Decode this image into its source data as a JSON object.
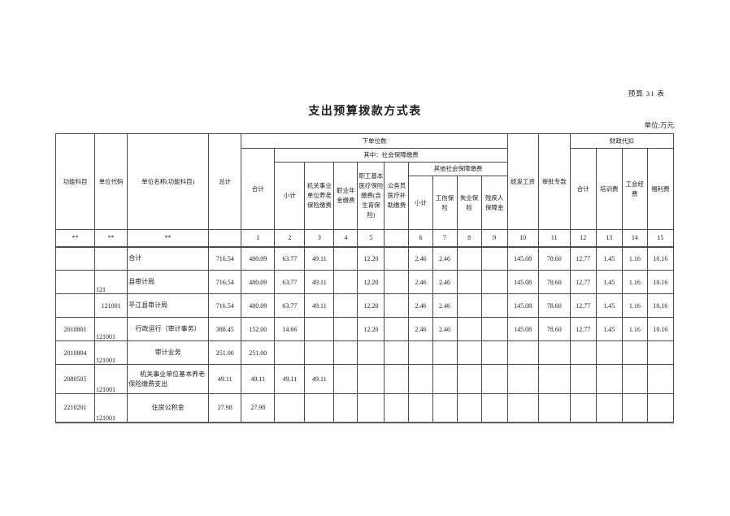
{
  "page": {
    "doc_note": "预算 31 表",
    "title": "支出预算拨款方式表",
    "unit_note": "单位:万元"
  },
  "table": {
    "headers": {
      "func_subject": "功能科目",
      "unit_code": "单位代码",
      "unit_name": "单位名称(功能科目)",
      "grand_total": "总计",
      "sub_units_group": "下单位数",
      "sub_total": "合计",
      "social_security_group": "其中：社会保障缴费",
      "social_subtotal": "小计",
      "pension": "机关事业单位养老保险缴费",
      "annuity": "职业年金缴费",
      "medical": "职工基本医疗保险缴费(含生育保险)",
      "civil_medical": "公务员医疗补助缴费",
      "other_social_group": "其他社会保障缴费",
      "other_subtotal": "小计",
      "injury_insurance": "工伤保险",
      "unemployment_insurance": "失业保险",
      "disability_fund": "残疾人保障金",
      "unified_salary": "统发工资",
      "approved_special": "审批专款",
      "fiscal_withhold_group": "财政代扣",
      "withhold_total": "合计",
      "training_fee": "培训费",
      "union_fee": "工会经费",
      "welfare_fee": "福利费"
    },
    "index_row": [
      "**",
      "**",
      "**",
      "",
      "1",
      "2",
      "3",
      "4",
      "5",
      "",
      "6",
      "7",
      "8",
      "9",
      "10",
      "11",
      "12",
      "13",
      "14",
      "15"
    ],
    "rows": [
      {
        "cells": [
          "",
          "",
          "合计",
          "716.54",
          "480.09",
          "63.77",
          "49.11",
          "",
          "12.20",
          "",
          "2.46",
          "2.46",
          "",
          "",
          "145.08",
          "78.60",
          "12.77",
          "1.45",
          "1.16",
          "10.16"
        ]
      },
      {
        "cells": [
          "",
          "121",
          "县审计局",
          "716.54",
          "480.09",
          "63.77",
          "49.11",
          "",
          "12.20",
          "",
          "2.46",
          "2.46",
          "",
          "",
          "145.08",
          "78.60",
          "12.77",
          "1.45",
          "1.16",
          "10.16"
        ]
      },
      {
        "cells": [
          "",
          "121001",
          "平江县审计局",
          "716.54",
          "480.09",
          "63.77",
          "49.11",
          "",
          "12.20",
          "",
          "2.46",
          "2.46",
          "",
          "",
          "145.08",
          "78.60",
          "12.77",
          "1.45",
          "1.16",
          "10.16"
        ]
      },
      {
        "cells": [
          "2010801",
          "121001",
          "行政运行（审计事务）",
          "388.45",
          "152.00",
          "14.66",
          "",
          "",
          "12.20",
          "",
          "2.46",
          "2.46",
          "",
          "",
          "145.08",
          "78.60",
          "12.77",
          "1.45",
          "1.16",
          "10.16"
        ]
      },
      {
        "cells": [
          "2010804",
          "121001",
          "审计业务",
          "251.00",
          "251.00",
          "",
          "",
          "",
          "",
          "",
          "",
          "",
          "",
          "",
          "",
          "",
          "",
          "",
          "",
          ""
        ]
      },
      {
        "cells": [
          "2080505",
          "121001",
          "机关事业单位基本养老保险缴费支出",
          "49.11",
          "49.11",
          "49.11",
          "49.11",
          "",
          "",
          "",
          "",
          "",
          "",
          "",
          "",
          "",
          "",
          "",
          "",
          ""
        ]
      },
      {
        "cells": [
          "2210201",
          "121001",
          "住房公积金",
          "27.98",
          "27.98",
          "",
          "",
          "",
          "",
          "",
          "",
          "",
          "",
          "",
          "",
          "",
          "",
          "",
          "",
          ""
        ]
      }
    ]
  }
}
